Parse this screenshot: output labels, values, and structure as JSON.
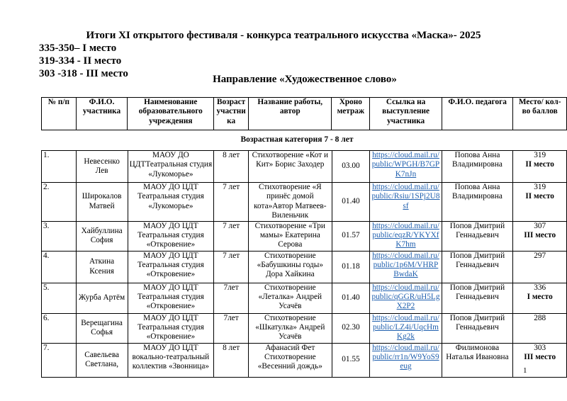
{
  "title": "Итоги XI открытого фестиваля - конкурса театрального искусства «Маска»- 2025",
  "ranges": [
    "335-350– I место",
    "319-334 - II место",
    "303 -318 - III место"
  ],
  "direction": "Направление «Художественное слово»",
  "headers": [
    "№ п/п",
    "Ф.И.О. участника",
    "Наименование образовательного учреждения",
    "Возраст участни ка",
    "Название работы, автор",
    "Хроно метраж",
    "Ссылка на выступление участника",
    "Ф.И.О. педагога",
    "Место/ кол-во баллов"
  ],
  "category": "Возрастная категория 7 - 8 лет",
  "rows": [
    {
      "num": "1.",
      "name": "Невесенко Лев",
      "school": "МАОУ ДО ЦДТТеатральная студия «Лукоморье»",
      "age": "8 лет",
      "work": "Стихотворение «Кот и Кит» Борис Заходер",
      "time": "03.00",
      "link": "https://cloud.mail.ru/public/WPGH/B7GPK7nJn",
      "teacher": "Попова Анна Владимировна",
      "score": "319",
      "place": "II место"
    },
    {
      "num": "2.",
      "name": "Широкалов Матвей",
      "school": "МАОУ ДО ЦДТ Театральная студия «Лукоморье»",
      "age": "7 лет",
      "work": "Стихотворение «Я принёс домой кота»Автор Матвеев-Виленьчик",
      "time": "01.40",
      "link": "https://cloud.mail.ru/public/Rsiu/1SPj2U8sf",
      "teacher": "Попова Анна Владимировна",
      "score": "319",
      "place": "II место"
    },
    {
      "num": "3.",
      "name": "Хайбуллина София",
      "school": "МАОУ ДО ЦДТ Театральная студия «Откровение»",
      "age": "7 лет",
      "work": "Стихотворение «Три мамы» Екатерина Серова",
      "time": "01.57",
      "link": "https://cloud.mail.ru/public/eqzR/YKYXfK7hm",
      "teacher": "Попов Дмитрий Геннадьевич",
      "score": "307",
      "place": "III место"
    },
    {
      "num": "4.",
      "name": "Аткина Ксения",
      "school": "МАОУ ДО ЦДТ Театральная студия «Откровение»",
      "age": "7 лет",
      "work": "Стихотворение «Бабушкины годы» Дора Хайкина",
      "time": "01.18",
      "link": "https://cloud.mail.ru/public/1p6M/VHRPBwdaK",
      "teacher": "Попов Дмитрий Геннадьевич",
      "score": "297",
      "place": ""
    },
    {
      "num": "5.",
      "name": "Журба Артём",
      "school": "МАОУ ДО ЦДТ Театральная студия «Откровение»",
      "age": "7лет",
      "work": "Стихотворение «Леталка» Андрей Усачёв",
      "time": "01.40",
      "link": "https://cloud.mail.ru/public/qGGR/uH5LgX2P2",
      "teacher": "Попов Дмитрий Геннадьевич",
      "score": "336",
      "place": "I место"
    },
    {
      "num": "6.",
      "name": "Верещагина Софья",
      "school": "МАОУ ДО ЦДТ Театральная студия «Откровение»",
      "age": "7лет",
      "work": "Стихотворение «Шкатулка» Андрей Усачёв",
      "time": "02.30",
      "link": "https://cloud.mail.ru/public/LZ4i/UqcHmKg2k",
      "teacher": "Попов Дмитрий Геннадьевич",
      "score": "288",
      "place": ""
    },
    {
      "num": "7.",
      "name": "Савельева Светлана,",
      "school": "МАОУ ДО ЦДТ вокально-театральный коллектив «Звонница»",
      "age": "8 лет",
      "work": "Афанасий Фет Стихотворение «Весенний дождь»",
      "time": "01.55",
      "link": "https://cloud.mail.ru/public/rr1n/W9YoS9eug",
      "teacher": "Филимонова Наталья Ивановна",
      "score": "303",
      "place": "III место"
    }
  ],
  "page_number": "1"
}
